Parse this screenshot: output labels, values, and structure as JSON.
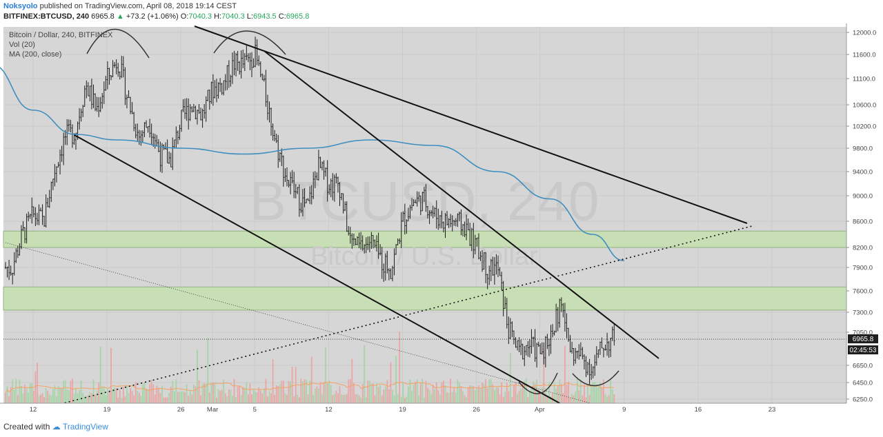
{
  "header": {
    "author": "Noksyolo",
    "published": "published on TradingView.com, April 08, 2018 19:14 CEST",
    "symbol": "BITFINEX:BTCUSD, 240",
    "last": "6965.8",
    "change": "+73.2 (+1.06%)",
    "o_label": "O:",
    "o_value": "7040.3",
    "h_label": "H:",
    "h_value": "7040.3",
    "l_label": "L:",
    "l_value": "6943.5",
    "c_label": "C:",
    "c_value": "6965.8"
  },
  "legend": {
    "main": "Bitcoin / Dollar, 240, BITFINEX",
    "vol": "Vol (20)",
    "ma": "MA (200, close)"
  },
  "watermark": {
    "symbol": "BTCUSD, 240",
    "name": "Bitcoin / U.S. Dollar"
  },
  "price_badges": {
    "last": "6965.8",
    "countdown": "02:45:53"
  },
  "footer": {
    "created_with": "Created with",
    "brand": "TradingView"
  },
  "colors": {
    "candle": "#1a1a1a",
    "ma": "#3d8dbf",
    "zone_fill": "#c8dfb4",
    "zone_border": "#8bb37a",
    "plot_bg": "#d6d6d6",
    "vol_up": "#a7d4a6",
    "vol_down": "#e9a6a6",
    "vol_ma": "#f4a261"
  },
  "chart_data": {
    "type": "candlestick",
    "y_axis_ticks": [
      12000,
      11600,
      11100,
      10600,
      10200,
      9800,
      9400,
      9000,
      8600,
      8200,
      7900,
      7600,
      7300,
      7050,
      6650,
      6450,
      6250
    ],
    "y_axis_labels": [
      "12000.0",
      "11600.0",
      "11100.0",
      "10600.0",
      "10200.0",
      "9800.0",
      "9400.0",
      "9000.0",
      "8600.0",
      "8200.0",
      "7900.0",
      "7600.0",
      "7300.0",
      "7050.0",
      "6650.0",
      "6450.0",
      "6250.0"
    ],
    "x_axis_labels": [
      "12",
      "19",
      "26",
      "Mar",
      "5",
      "12",
      "19",
      "26",
      "Apr",
      "9",
      "16",
      "23"
    ],
    "x_axis_dates": [
      "2018-02-12",
      "2018-02-19",
      "2018-02-26",
      "2018-03-01",
      "2018-03-05",
      "2018-03-12",
      "2018-03-19",
      "2018-03-26",
      "2018-04-01",
      "2018-04-09",
      "2018-04-16",
      "2018-04-23"
    ],
    "close_path": [
      [
        "2018-02-10",
        7900
      ],
      [
        "2018-02-11",
        8400
      ],
      [
        "2018-02-12",
        8700
      ],
      [
        "2018-02-13",
        8600
      ],
      [
        "2018-02-14",
        9400
      ],
      [
        "2018-02-15",
        10000
      ],
      [
        "2018-02-16",
        10100
      ],
      [
        "2018-02-17",
        11000
      ],
      [
        "2018-02-18",
        10500
      ],
      [
        "2018-02-19",
        11100
      ],
      [
        "2018-02-20",
        11500
      ],
      [
        "2018-02-21",
        10700
      ],
      [
        "2018-02-22",
        10000
      ],
      [
        "2018-02-23",
        10300
      ],
      [
        "2018-02-24",
        9700
      ],
      [
        "2018-02-25",
        9600
      ],
      [
        "2018-02-26",
        10300
      ],
      [
        "2018-02-27",
        10600
      ],
      [
        "2018-02-28",
        10400
      ],
      [
        "2018-03-01",
        10900
      ],
      [
        "2018-03-02",
        11000
      ],
      [
        "2018-03-03",
        11400
      ],
      [
        "2018-03-04",
        11400
      ],
      [
        "2018-03-05",
        11600
      ],
      [
        "2018-03-06",
        10800
      ],
      [
        "2018-03-07",
        9900
      ],
      [
        "2018-03-08",
        9300
      ],
      [
        "2018-03-09",
        9000
      ],
      [
        "2018-03-10",
        8800
      ],
      [
        "2018-03-11",
        9500
      ],
      [
        "2018-03-12",
        9200
      ],
      [
        "2018-03-13",
        9200
      ],
      [
        "2018-03-14",
        8300
      ],
      [
        "2018-03-15",
        8200
      ],
      [
        "2018-03-16",
        8300
      ],
      [
        "2018-03-17",
        8000
      ],
      [
        "2018-03-18",
        7900
      ],
      [
        "2018-03-19",
        8600
      ],
      [
        "2018-03-20",
        8900
      ],
      [
        "2018-03-21",
        8950
      ],
      [
        "2018-03-22",
        8700
      ],
      [
        "2018-03-23",
        8600
      ],
      [
        "2018-03-24",
        8600
      ],
      [
        "2018-03-25",
        8500
      ],
      [
        "2018-03-26",
        8200
      ],
      [
        "2018-03-27",
        7900
      ],
      [
        "2018-03-28",
        7900
      ],
      [
        "2018-03-29",
        7100
      ],
      [
        "2018-03-30",
        6800
      ],
      [
        "2018-03-31",
        6900
      ],
      [
        "2018-04-01",
        6800
      ],
      [
        "2018-04-02",
        7000
      ],
      [
        "2018-04-03",
        7400
      ],
      [
        "2018-04-04",
        6800
      ],
      [
        "2018-04-05",
        6750
      ],
      [
        "2018-04-06",
        6600
      ],
      [
        "2018-04-07",
        6900
      ],
      [
        "2018-04-08",
        6966
      ]
    ],
    "ma200": [
      [
        "2018-02-08",
        11400
      ],
      [
        "2018-02-12",
        10500
      ],
      [
        "2018-02-16",
        10050
      ],
      [
        "2018-02-20",
        9950
      ],
      [
        "2018-02-26",
        9800
      ],
      [
        "2018-03-04",
        9700
      ],
      [
        "2018-03-10",
        9800
      ],
      [
        "2018-03-16",
        9950
      ],
      [
        "2018-03-22",
        9850
      ],
      [
        "2018-03-28",
        9400
      ],
      [
        "2018-04-02",
        8950
      ],
      [
        "2018-04-06",
        8400
      ],
      [
        "2018-04-09",
        8000
      ]
    ],
    "zones": [
      {
        "low": 8200,
        "high": 8450
      },
      {
        "low": 7330,
        "high": 7650
      }
    ],
    "current_price": 6965.8
  }
}
